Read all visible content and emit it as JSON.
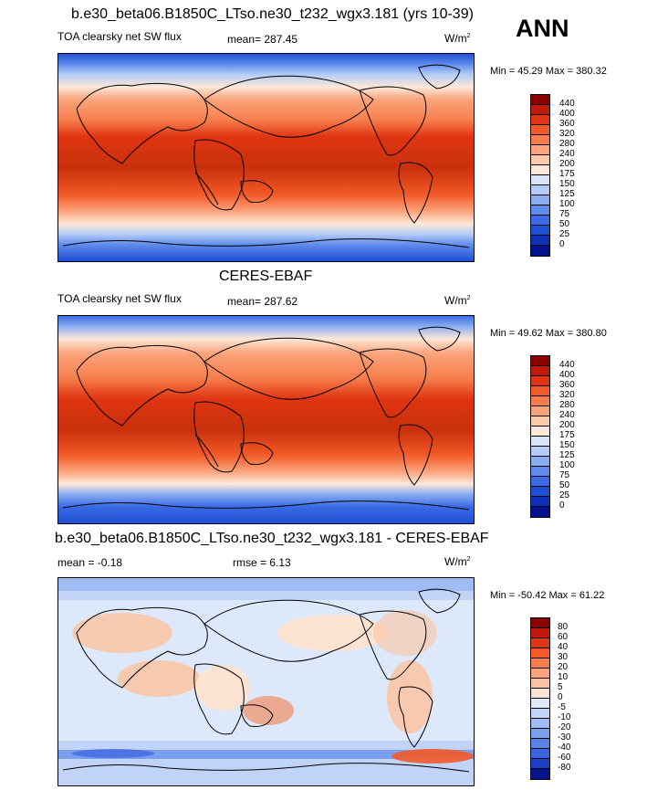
{
  "season": "ANN",
  "panels": [
    {
      "title": "b.e30_beta06.B1850C_LTso.ne30_t232_wgx3.181 (yrs 10-39)",
      "left_label": "TOA clearsky net SW flux",
      "stat_label": "mean= 287.45",
      "stat2_label": "",
      "units": "W/m",
      "units_sup": "2",
      "minmax": "Min =  45.29 Max = 380.32",
      "colorbar": {
        "colors": [
          "#8b0000",
          "#c21a0a",
          "#e03512",
          "#f25a28",
          "#f77e4c",
          "#fba47c",
          "#fdcaa8",
          "#fde8d8",
          "#d8e6fb",
          "#b4ccf7",
          "#8aadf2",
          "#5f8cec",
          "#3a6be4",
          "#1f4fd6",
          "#0f31b8",
          "#04128e"
        ],
        "labels": [
          "440",
          "400",
          "360",
          "320",
          "280",
          "240",
          "200",
          "175",
          "150",
          "125",
          "100",
          "75",
          "50",
          "25",
          "0"
        ]
      }
    },
    {
      "title": "CERES-EBAF",
      "left_label": "TOA clearsky net SW flux",
      "stat_label": "mean= 287.62",
      "stat2_label": "",
      "units": "W/m",
      "units_sup": "2",
      "minmax": "Min =  49.62 Max = 380.80",
      "colorbar": {
        "colors": [
          "#8b0000",
          "#c21a0a",
          "#e03512",
          "#f25a28",
          "#f77e4c",
          "#fba47c",
          "#fdcaa8",
          "#fde8d8",
          "#d8e6fb",
          "#b4ccf7",
          "#8aadf2",
          "#5f8cec",
          "#3a6be4",
          "#1f4fd6",
          "#0f31b8",
          "#04128e"
        ],
        "labels": [
          "440",
          "400",
          "360",
          "320",
          "280",
          "240",
          "200",
          "175",
          "150",
          "125",
          "100",
          "75",
          "50",
          "25",
          "0"
        ]
      }
    },
    {
      "title": "b.e30_beta06.B1850C_LTso.ne30_t232_wgx3.181 - CERES-EBAF",
      "left_label": "mean =  -0.18",
      "stat_label": "rmse =   6.13",
      "units": "W/m",
      "units_sup": "2",
      "minmax": "Min = -50.42 Max =  61.22",
      "colorbar": {
        "colors": [
          "#8b0000",
          "#c21a0a",
          "#e03512",
          "#f25a28",
          "#f77e4c",
          "#fba47c",
          "#fcc3a0",
          "#fde3d2",
          "#dde9fb",
          "#c1d4f8",
          "#9fbcf3",
          "#7a9fee",
          "#5a83e8",
          "#3a63df",
          "#1e40c8",
          "#07148c"
        ],
        "labels": [
          "80",
          "60",
          "40",
          "30",
          "20",
          "10",
          "5",
          "0",
          "-5",
          "-10",
          "-20",
          "-30",
          "-40",
          "-60",
          "-80"
        ]
      }
    }
  ]
}
